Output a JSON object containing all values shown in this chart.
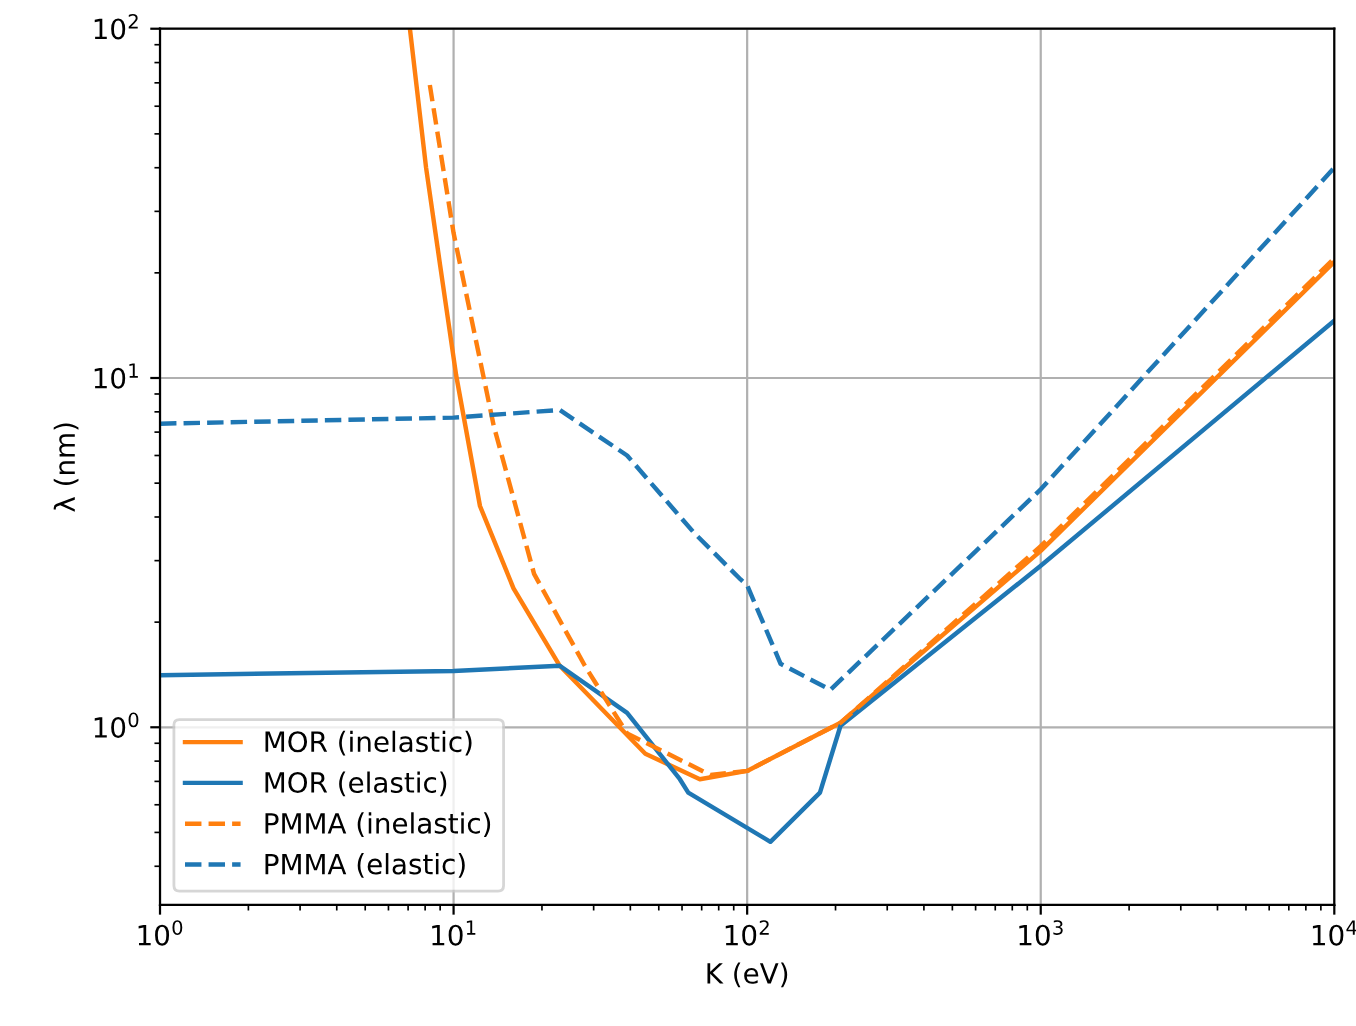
{
  "chart_data": {
    "type": "line",
    "xlabel": "K (eV)",
    "ylabel": "λ (nm)",
    "log": "xy",
    "grid": true,
    "legend": "bottom left",
    "xlim": [
      1,
      10000
    ],
    "ylim": [
      0.31,
      100
    ],
    "xticks": [
      {
        "value": 1,
        "label": "10$^{0}$"
      },
      {
        "value": 10,
        "label": "10$^{1}$"
      },
      {
        "value": 100,
        "label": "10$^{2}$"
      },
      {
        "value": 1000,
        "label": "10$^{3}$"
      },
      {
        "value": 10000,
        "label": "10$^{4}$"
      }
    ],
    "yticks": [
      {
        "value": 1,
        "label": "10$^{0}$"
      },
      {
        "value": 10,
        "label": "10$^{1}$"
      },
      {
        "value": 100,
        "label": "10$^{2}$"
      }
    ],
    "series": [
      {
        "name": "MOR (inelastic)",
        "color": "#ff7f0e",
        "line_style": "solid",
        "x": [
          7.1,
          8.06,
          9.0,
          10.2,
          12.3,
          16,
          23,
          45,
          69,
          100,
          208,
          1000,
          10000
        ],
        "values": [
          100,
          40,
          21,
          10.2,
          4.3,
          2.5,
          1.5,
          0.84,
          0.71,
          0.75,
          1.03,
          3.2,
          21.5
        ]
      },
      {
        "name": "MOR (elastic)",
        "color": "#1f77b4",
        "line_style": "solid",
        "x": [
          1,
          10,
          23,
          39,
          59,
          63,
          120,
          177,
          208,
          1000,
          10000
        ],
        "values": [
          1.41,
          1.45,
          1.5,
          1.1,
          0.71,
          0.65,
          0.47,
          0.65,
          1.01,
          2.9,
          14.6
        ]
      },
      {
        "name": "PMMA (inelastic)",
        "color": "#ff7f0e",
        "line_style": "dashed",
        "x": [
          8.3,
          10,
          13.7,
          18.8,
          28,
          39,
          75,
          100,
          208,
          1000,
          10000
        ],
        "values": [
          69,
          26,
          7.3,
          2.75,
          1.5,
          0.96,
          0.73,
          0.75,
          1.03,
          3.3,
          22
        ]
      },
      {
        "name": "PMMA (elastic)",
        "color": "#1f77b4",
        "line_style": "dashed",
        "x": [
          1,
          10,
          23,
          39,
          66,
          95,
          100,
          130,
          192,
          1000,
          10000
        ],
        "values": [
          7.4,
          7.7,
          8.1,
          6.0,
          3.6,
          2.65,
          2.55,
          1.52,
          1.28,
          4.8,
          40
        ]
      }
    ]
  }
}
